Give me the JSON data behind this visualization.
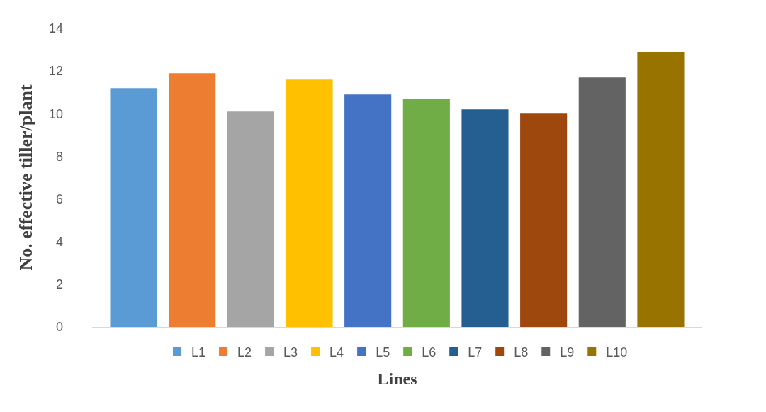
{
  "chart_data": {
    "type": "bar",
    "xlabel": "Lines",
    "ylabel": "No. effective tiller/plant",
    "categories": [
      null
    ],
    "series": [
      {
        "name": "L1",
        "color": "#5b9bd5",
        "values": [
          11.2
        ]
      },
      {
        "name": "L2",
        "color": "#ed7d31",
        "values": [
          11.9
        ]
      },
      {
        "name": "L3",
        "color": "#a5a5a5",
        "values": [
          10.1
        ]
      },
      {
        "name": "L4",
        "color": "#ffc000",
        "values": [
          11.6
        ]
      },
      {
        "name": "L5",
        "color": "#4472c4",
        "values": [
          10.9
        ]
      },
      {
        "name": "L6",
        "color": "#70ad47",
        "values": [
          10.7
        ]
      },
      {
        "name": "L7",
        "color": "#255e91",
        "values": [
          10.2
        ]
      },
      {
        "name": "L8",
        "color": "#9e480e",
        "values": [
          10.0
        ]
      },
      {
        "name": "L9",
        "color": "#636363",
        "values": [
          11.7
        ]
      },
      {
        "name": "L10",
        "color": "#997300",
        "values": [
          12.9
        ]
      }
    ],
    "ylim": [
      0,
      14
    ],
    "yticks": [
      0,
      2,
      4,
      6,
      8,
      10,
      12,
      14
    ],
    "legend": "bottom",
    "tick_labels": "y"
  }
}
